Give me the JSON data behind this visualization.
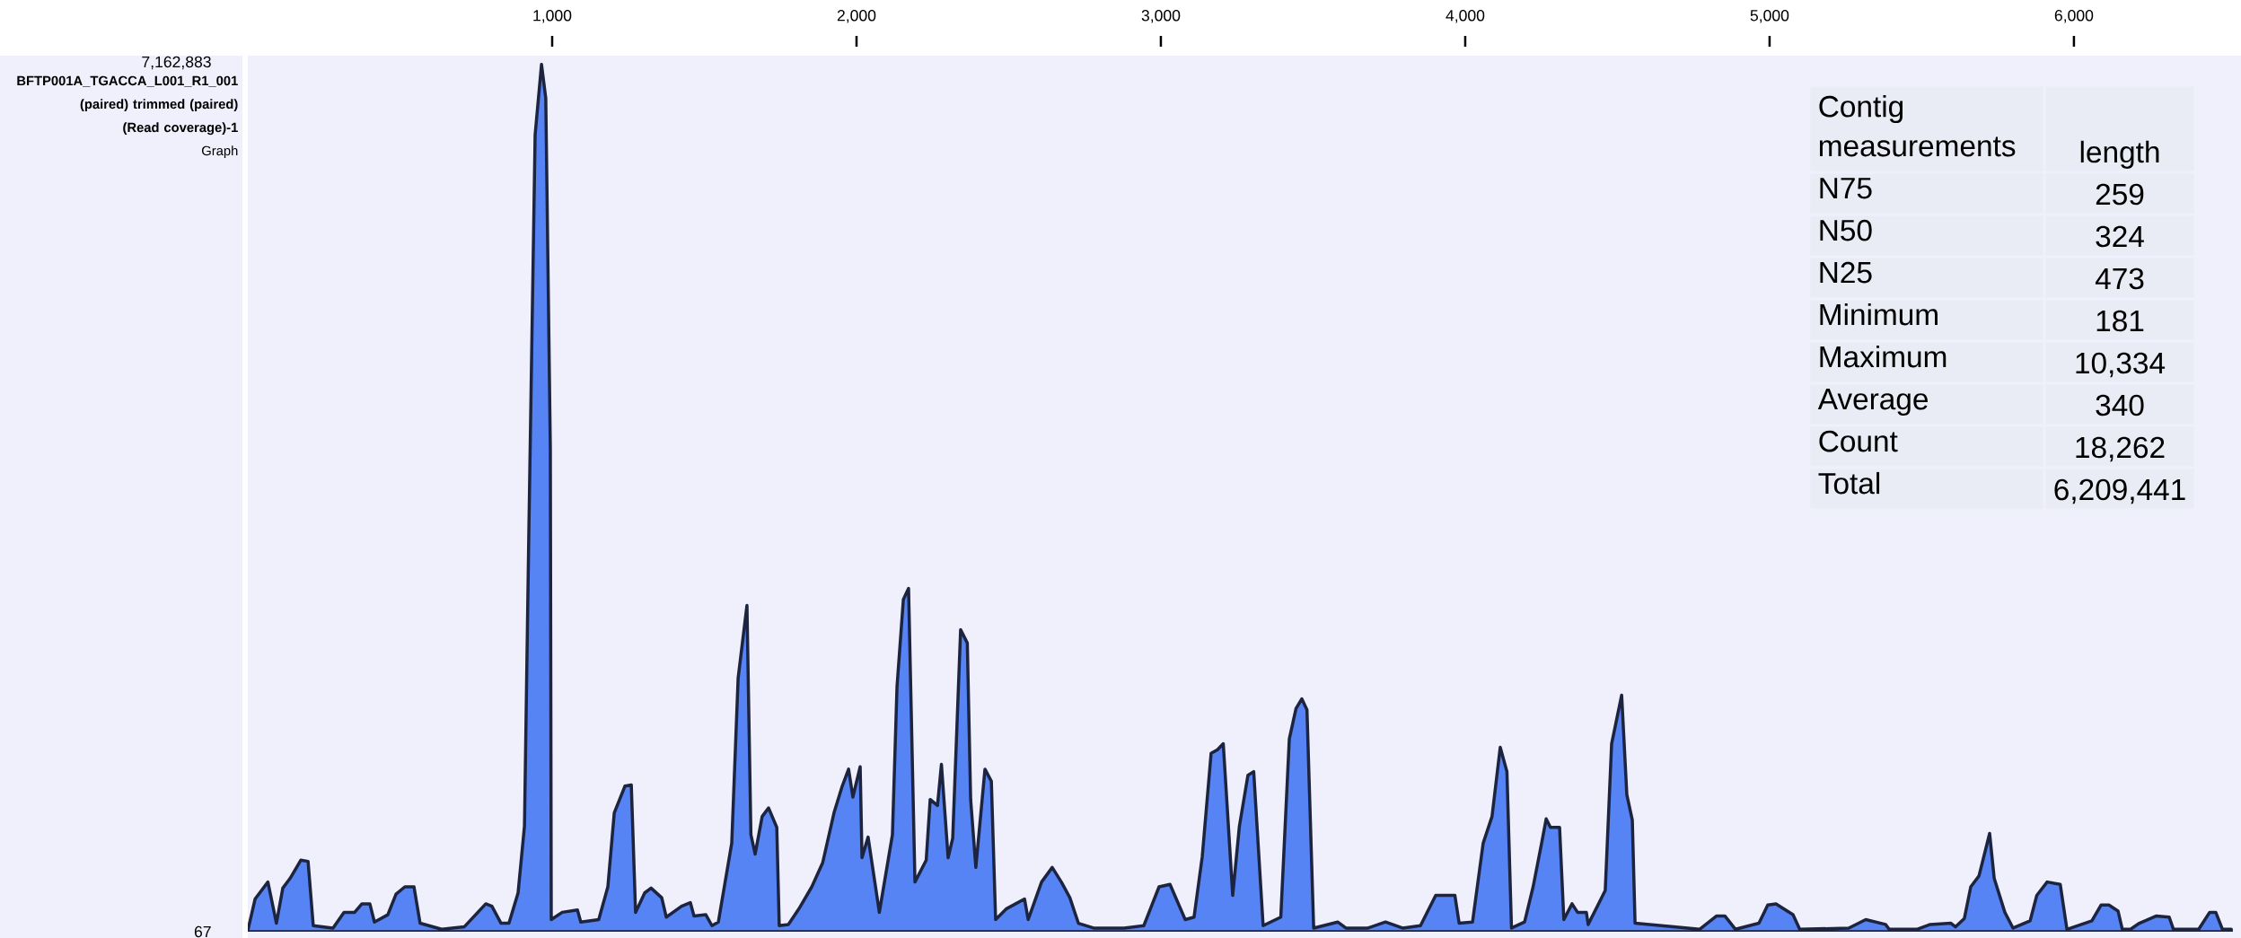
{
  "chart_data": {
    "type": "area",
    "title": "BFTP001A_TGACCA_L001_R1_001 (paired) trimmed (paired) (Read coverage)-1",
    "subtitle": "Graph",
    "color": "#5784f5",
    "xlim": [
      0,
      6549
    ],
    "xticks": [
      {
        "value": 1000,
        "label": "1,000"
      },
      {
        "value": 2000,
        "label": "2,000"
      },
      {
        "value": 3000,
        "label": "3,000"
      },
      {
        "value": 4000,
        "label": "4,000"
      },
      {
        "value": 5000,
        "label": "5,000"
      },
      {
        "value": 6000,
        "label": "6,000"
      }
    ],
    "ylim": [
      67,
      7162883
    ],
    "yticks": [
      67,
      {
        "value": 7162883,
        "label": "7,162,883"
      }
    ],
    "x": [
      0,
      24,
      66,
      94,
      115,
      139,
      174,
      198,
      215,
      280,
      316,
      351,
      375,
      401,
      416,
      460,
      487,
      516,
      546,
      566,
      637,
      711,
      782,
      802,
      832,
      858,
      888,
      909,
      923,
      944,
      965,
      979,
      994,
      997,
      1033,
      1083,
      1094,
      1153,
      1183,
      1204,
      1239,
      1260,
      1274,
      1304,
      1325,
      1360,
      1375,
      1425,
      1454,
      1466,
      1505,
      1525,
      1546,
      1590,
      1611,
      1640,
      1653,
      1667,
      1690,
      1711,
      1738,
      1746,
      1776,
      1811,
      1853,
      1889,
      1926,
      1953,
      1974,
      1988,
      2012,
      2018,
      2038,
      2075,
      2118,
      2133,
      2154,
      2171,
      2192,
      2229,
      2242,
      2266,
      2279,
      2301,
      2316,
      2342,
      2364,
      2375,
      2392,
      2422,
      2443,
      2457,
      2493,
      2552,
      2564,
      2608,
      2643,
      2673,
      2701,
      2729,
      2779,
      2879,
      2944,
      2994,
      3030,
      3080,
      3109,
      3136,
      3165,
      3186,
      3205,
      3236,
      3258,
      3286,
      3305,
      3336,
      3394,
      3422,
      3444,
      3463,
      3480,
      3502,
      3581,
      3608,
      3680,
      3738,
      3794,
      3853,
      3903,
      3966,
      3980,
      4024,
      4059,
      4088,
      4115,
      4137,
      4152,
      4195,
      4223,
      4251,
      4266,
      4280,
      4310,
      4324,
      4351,
      4369,
      4398,
      4404,
      4432,
      4460,
      4481,
      4514,
      4531,
      4549,
      4558,
      4685,
      4770,
      4826,
      4853,
      4888,
      4965,
      4994,
      5021,
      5077,
      5099,
      5260,
      5316,
      5381,
      5393,
      5484,
      5528,
      5596,
      5611,
      5640,
      5661,
      5688,
      5723,
      5738,
      5773,
      5800,
      5856,
      5878,
      5912,
      5955,
      5977,
      6059,
      6089,
      6115,
      6145,
      6159,
      6186,
      6215,
      6271,
      6313,
      6327,
      6410,
      6446,
      6466,
      6488,
      6517
    ],
    "values": [
      10000,
      270000,
      410000,
      70000,
      360000,
      440000,
      590000,
      580000,
      50000,
      30000,
      160000,
      160000,
      230000,
      230000,
      80000,
      140000,
      310000,
      370000,
      370000,
      70000,
      20000,
      40000,
      230000,
      210000,
      70000,
      70000,
      320000,
      870000,
      3240000,
      6570000,
      7150000,
      6870000,
      3980000,
      100000,
      160000,
      180000,
      80000,
      100000,
      370000,
      980000,
      1200000,
      1210000,
      160000,
      320000,
      360000,
      280000,
      120000,
      210000,
      240000,
      130000,
      140000,
      50000,
      80000,
      730000,
      2090000,
      2690000,
      800000,
      640000,
      950000,
      1020000,
      860000,
      50000,
      60000,
      190000,
      370000,
      570000,
      980000,
      1200000,
      1340000,
      1110000,
      1360000,
      610000,
      780000,
      160000,
      800000,
      2020000,
      2740000,
      2830000,
      410000,
      590000,
      1090000,
      1040000,
      1380000,
      610000,
      770000,
      2490000,
      2380000,
      1090000,
      530000,
      1340000,
      1240000,
      100000,
      190000,
      270000,
      100000,
      410000,
      530000,
      410000,
      280000,
      70000,
      30000,
      30000,
      50000,
      370000,
      390000,
      100000,
      120000,
      620000,
      1470000,
      1500000,
      1550000,
      300000,
      870000,
      1290000,
      1320000,
      50000,
      120000,
      1590000,
      1840000,
      1920000,
      1830000,
      30000,
      80000,
      30000,
      30000,
      80000,
      30000,
      50000,
      300000,
      300000,
      70000,
      80000,
      730000,
      950000,
      1520000,
      1320000,
      30000,
      80000,
      370000,
      730000,
      930000,
      860000,
      860000,
      100000,
      230000,
      160000,
      160000,
      60000,
      200000,
      340000,
      1550000,
      1950000,
      1130000,
      920000,
      70000,
      40000,
      20000,
      130000,
      130000,
      20000,
      70000,
      220000,
      230000,
      140000,
      20000,
      30000,
      100000,
      60000,
      20000,
      20000,
      60000,
      70000,
      40000,
      110000,
      370000,
      460000,
      810000,
      440000,
      160000,
      30000,
      90000,
      300000,
      410000,
      390000,
      20000,
      90000,
      220000,
      220000,
      170000,
      20000,
      20000,
      70000,
      130000,
      120000,
      20000,
      20000,
      160000,
      160000,
      20000,
      20000
    ],
    "annotations": [
      "Contig measurements",
      "length",
      "N75",
      "259",
      "N50",
      "324",
      "N25",
      "473",
      "Minimum",
      "181",
      "Maximum",
      "10,334",
      "Average",
      "340",
      "Count",
      "18,262",
      "Total",
      "6,209,441"
    ]
  }
}
